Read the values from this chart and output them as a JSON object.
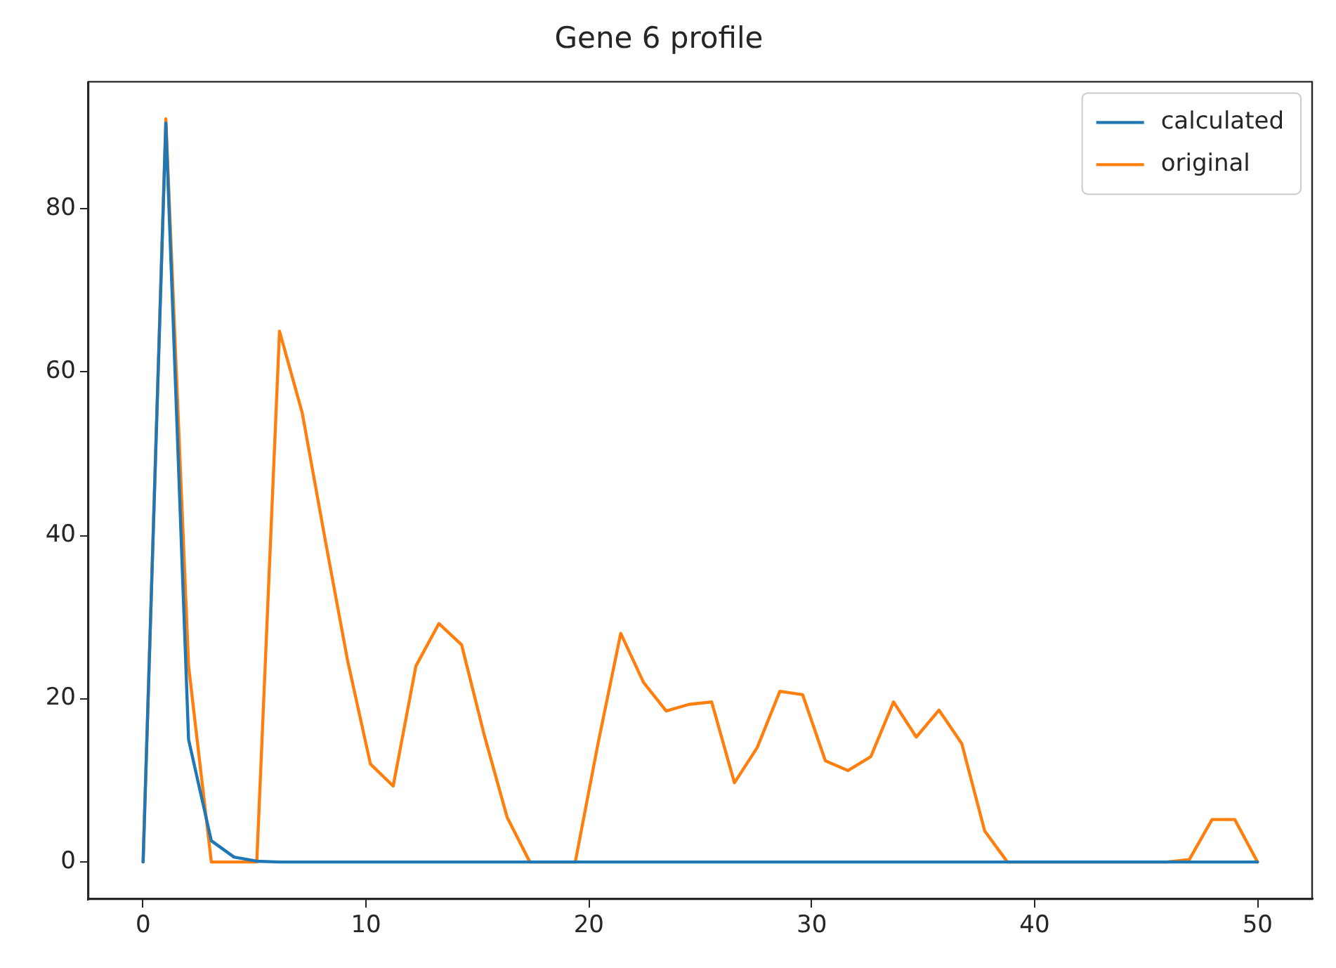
{
  "chart_data": {
    "type": "line",
    "title": "Gene 6 profile",
    "x": [
      0,
      1.02,
      2.04,
      3.06,
      4.08,
      5.1,
      6.12,
      7.14,
      8.16,
      9.18,
      10.2,
      11.22,
      12.24,
      13.27,
      14.29,
      15.31,
      16.33,
      17.35,
      18.37,
      19.39,
      20.41,
      21.43,
      22.45,
      23.47,
      24.49,
      25.51,
      26.53,
      27.55,
      28.57,
      29.59,
      30.61,
      31.63,
      32.65,
      33.67,
      34.69,
      35.71,
      36.73,
      37.76,
      38.78,
      39.8,
      40.82,
      41.84,
      42.86,
      43.88,
      44.9,
      45.92,
      46.94,
      47.96,
      48.98,
      50
    ],
    "series": [
      {
        "name": "calculated",
        "color": "#1f77b4",
        "values": [
          0,
          90.5,
          15,
          2.6,
          0.6,
          0.1,
          0,
          0,
          0,
          0,
          0,
          0,
          0,
          0,
          0,
          0,
          0,
          0,
          0,
          0,
          0,
          0,
          0,
          0,
          0,
          0,
          0,
          0,
          0,
          0,
          0,
          0,
          0,
          0,
          0,
          0,
          0,
          0,
          0,
          0,
          0,
          0,
          0,
          0,
          0,
          0,
          0,
          0,
          0,
          0
        ]
      },
      {
        "name": "original",
        "color": "#ff7f0e",
        "values": [
          0,
          91,
          24,
          0,
          0,
          0,
          65,
          55,
          39.6,
          24.6,
          12,
          9.3,
          24,
          29.2,
          26.6,
          15.5,
          5.5,
          0,
          0,
          0,
          14.5,
          28,
          22,
          18.5,
          19.3,
          19.6,
          9.7,
          14,
          20.9,
          20.5,
          12.4,
          11.2,
          12.9,
          19.6,
          15.3,
          18.6,
          14.5,
          3.8,
          0,
          0,
          0,
          0,
          0,
          0,
          0,
          0,
          0.3,
          5.2,
          5.2,
          0
        ]
      }
    ],
    "xlim": [
      -2.45,
      52.45
    ],
    "ylim": [
      -4.55,
      95.55
    ],
    "xticks": [
      0,
      10,
      20,
      30,
      40,
      50
    ],
    "yticks": [
      0,
      20,
      40,
      60,
      80
    ],
    "grid": false,
    "legend": "top right",
    "marker": "none",
    "line_style": "solid"
  }
}
